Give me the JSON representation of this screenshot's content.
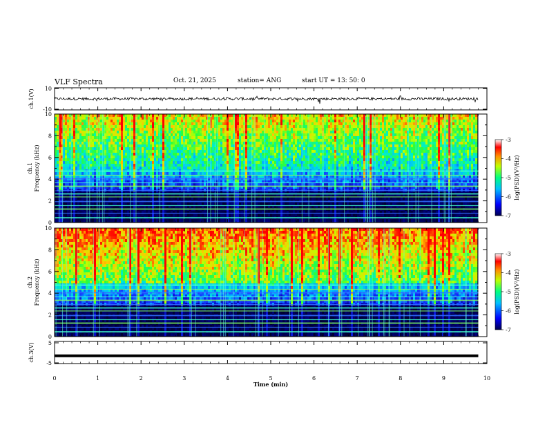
{
  "header": {
    "title": "VLF Spectra",
    "date": "Oct. 21, 2025",
    "station": "station= ANG",
    "start_time": "start  UT =   13: 50: 0"
  },
  "chart_data": [
    {
      "id": "ch1-waveform",
      "type": "line",
      "ylabel": "ch.1(V)",
      "ylim": [
        -10,
        10
      ],
      "yticks": [
        "10",
        "-10"
      ],
      "x": [
        0,
        9.8
      ],
      "baseline": 0,
      "note_series": "continuous noisy waveform around 0 V"
    },
    {
      "id": "ch1-spectrogram",
      "type": "heatmap",
      "ylabel": "ch.1\nFrequency (kHz)",
      "ylabel_lines": [
        "ch.1",
        "Frequency (kHz)"
      ],
      "ylim": [
        0,
        10
      ],
      "yticks": [
        "0",
        "2",
        "4",
        "6",
        "8",
        "10"
      ],
      "colorbar": {
        "label": "log(PSD)(V²/Hz)",
        "range": [
          -7,
          -3
        ],
        "ticks": [
          "-3",
          "-4",
          "-5",
          "-6",
          "-7"
        ]
      },
      "colormap": [
        "#000050",
        "#0000ff",
        "#00a0ff",
        "#00ffff",
        "#00ff80",
        "#80ff00",
        "#ffff00",
        "#ff8000",
        "#ff0000",
        "#ffffff"
      ]
    },
    {
      "id": "ch2-spectrogram",
      "type": "heatmap",
      "ylabel_lines": [
        "ch.2",
        "Frequency (kHz)"
      ],
      "ylim": [
        0,
        10
      ],
      "yticks": [
        "0",
        "2",
        "4",
        "6",
        "8",
        "10"
      ],
      "colorbar": {
        "label": "log(PSD)(V²/Hz)",
        "range": [
          -7,
          -3
        ],
        "ticks": [
          "-3",
          "-4",
          "-5",
          "-6",
          "-7"
        ]
      }
    },
    {
      "id": "ch3-waveform",
      "type": "line",
      "ylabel": "ch.3(V)",
      "ylim": [
        -5,
        5
      ],
      "yticks": [
        "5",
        "-5"
      ],
      "baseline": -1.5
    }
  ],
  "x_axis": {
    "label": "Time (min)",
    "xlim": [
      0,
      10
    ],
    "ticks": [
      "0",
      "1",
      "2",
      "3",
      "4",
      "5",
      "6",
      "7",
      "8",
      "9",
      "10"
    ]
  }
}
